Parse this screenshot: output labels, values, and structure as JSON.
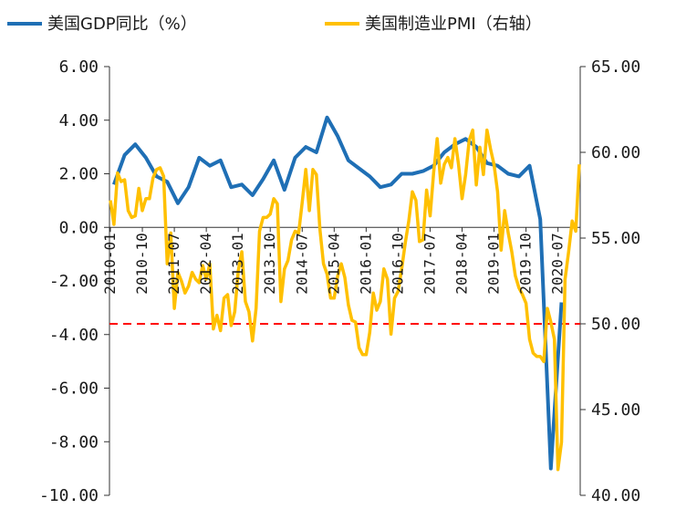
{
  "chart_data": {
    "type": "line",
    "title": "",
    "legend": {
      "placement": "top",
      "entries": [
        "美国GDP同比（%）",
        "美国制造业PMI（右轴）"
      ]
    },
    "x_ticks": [
      "2010-01",
      "2010-10",
      "2011-07",
      "2012-04",
      "2013-01",
      "2013-10",
      "2014-07",
      "2015-04",
      "2016-01",
      "2016-10",
      "2017-07",
      "2018-04",
      "2019-01",
      "2019-10",
      "2020-07"
    ],
    "left_axis": {
      "ylim": [
        -10,
        6
      ],
      "ticks": [
        "6.00",
        "4.00",
        "2.00",
        "0.00",
        "-2.00",
        "-4.00",
        "-6.00",
        "-8.00",
        "-10.00"
      ]
    },
    "right_axis": {
      "ylim": [
        40,
        65
      ],
      "ticks": [
        "65.00",
        "60.00",
        "55.00",
        "50.00",
        "45.00",
        "40.00"
      ]
    },
    "reference_line": {
      "axis": "right",
      "value": 50,
      "style": "dashed",
      "color": "#ff0000"
    },
    "colors": {
      "gdp": "#1f6fb5",
      "pmi": "#ffc000"
    },
    "series": [
      {
        "name": "美国GDP同比（%）",
        "axis": "left",
        "quarterly": true,
        "start": "2010-01",
        "values": [
          1.6,
          2.7,
          3.1,
          2.6,
          1.9,
          1.7,
          0.9,
          1.5,
          2.6,
          2.3,
          2.5,
          1.5,
          1.6,
          1.2,
          1.8,
          2.5,
          1.4,
          2.6,
          3.0,
          2.8,
          4.1,
          3.4,
          2.5,
          2.2,
          1.9,
          1.5,
          1.6,
          2.0,
          2.0,
          2.1,
          2.3,
          2.8,
          3.1,
          3.3,
          3.0,
          2.4,
          2.3,
          2.0,
          1.9,
          2.3,
          0.3,
          -9.0,
          -2.8
        ]
      },
      {
        "name": "美国制造业PMI（右轴）",
        "axis": "right",
        "monthly": true,
        "start": "2010-01",
        "values": [
          57.2,
          55.8,
          58.8,
          58.3,
          58.4,
          56.6,
          56.2,
          56.3,
          57.9,
          56.6,
          57.3,
          57.3,
          58.5,
          59.0,
          59.1,
          58.6,
          53.5,
          55.3,
          50.9,
          53.0,
          52.5,
          51.8,
          52.2,
          53.0,
          52.6,
          52.4,
          53.4,
          52.6,
          53.5,
          49.7,
          50.5,
          49.6,
          51.5,
          51.7,
          49.9,
          50.7,
          53.1,
          54.2,
          51.3,
          50.7,
          49.0,
          50.9,
          55.4,
          56.2,
          56.2,
          56.4,
          57.3,
          57.0,
          51.3,
          53.2,
          53.7,
          54.9,
          55.4,
          55.3,
          57.1,
          59.0,
          56.6,
          59.0,
          58.7,
          55.5,
          53.5,
          52.9,
          51.5,
          51.5,
          52.8,
          53.5,
          52.7,
          51.1,
          50.2,
          50.1,
          48.6,
          48.2,
          48.2,
          49.5,
          51.8,
          50.8,
          51.3,
          53.2,
          52.6,
          49.4,
          51.5,
          51.9,
          53.2,
          54.7,
          56.0,
          57.7,
          57.2,
          54.8,
          54.9,
          57.8,
          56.3,
          58.8,
          60.8,
          58.2,
          59.3,
          59.7,
          59.1,
          60.8,
          59.3,
          57.3,
          58.7,
          60.7,
          61.3,
          58.1,
          60.3,
          58.7,
          61.3,
          60.2,
          59.3,
          57.7,
          54.3,
          56.6,
          55.3,
          54.2,
          52.8,
          52.1,
          51.7,
          51.2,
          49.1,
          48.3,
          48.1,
          48.1,
          47.8,
          50.9,
          50.1,
          49.1,
          41.5,
          43.1,
          52.6,
          54.2,
          56.0,
          55.4,
          59.3
        ]
      }
    ]
  }
}
